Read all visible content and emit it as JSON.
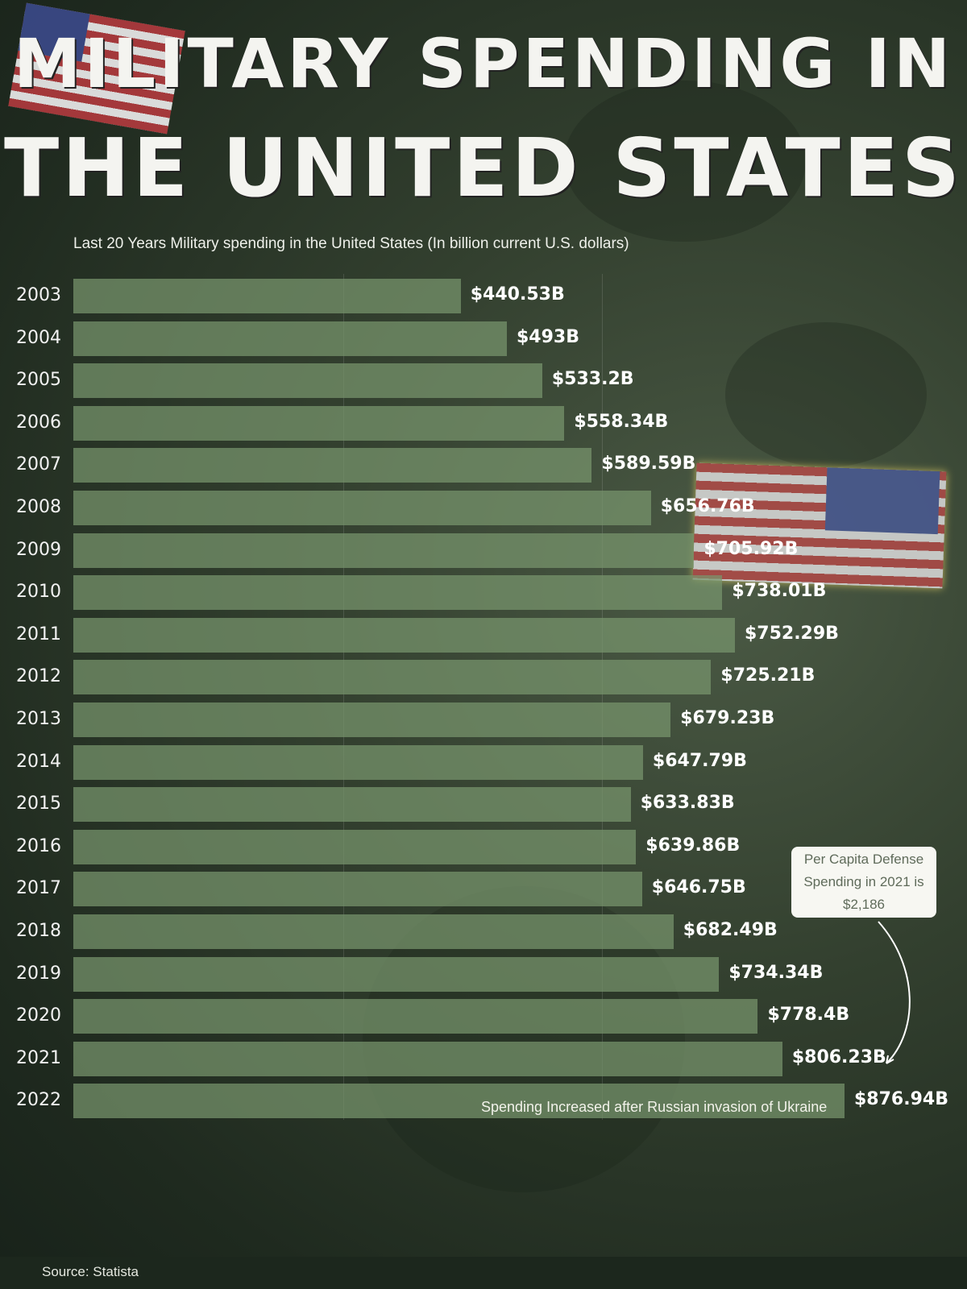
{
  "title_line1": "MILITARY SPENDING IN",
  "title_line2": "THE UNITED STATES",
  "subtitle": "Last 20 Years Military spending in the United States (In billion current U.S. dollars)",
  "callout": {
    "line1": "Per Capita Defense",
    "line2": "Spending in 2021 is",
    "line3": "$2,186"
  },
  "note": "Spending Increased after Russian invasion of Ukraine",
  "source": "Source: Statista",
  "colors": {
    "bar": "#78966e",
    "background": "#2e3a2c",
    "text": "#ffffff"
  },
  "chart_data": {
    "type": "bar",
    "orientation": "horizontal",
    "title": "MILITARY SPENDING IN THE UNITED STATES",
    "subtitle": "Last 20 Years Military spending in the United States (In billion current U.S. dollars)",
    "categories": [
      "2003",
      "2004",
      "2005",
      "2006",
      "2007",
      "2008",
      "2009",
      "2010",
      "2011",
      "2012",
      "2013",
      "2014",
      "2015",
      "2016",
      "2017",
      "2018",
      "2019",
      "2020",
      "2021",
      "2022"
    ],
    "values": [
      440.53,
      493,
      533.2,
      558.34,
      589.59,
      656.76,
      705.92,
      738.01,
      752.29,
      725.21,
      679.23,
      647.79,
      633.83,
      639.86,
      646.75,
      682.49,
      734.34,
      778.4,
      806.23,
      876.94
    ],
    "labels": [
      "$440.53B",
      "$493B",
      "$533.2B",
      "$558.34B",
      "$589.59B",
      "$656.76B",
      "$705.92B",
      "$738.01B",
      "$752.29B",
      "$725.21B",
      "$679.23B",
      "$647.79B",
      "$633.83B",
      "$639.86B",
      "$646.75B",
      "$682.49B",
      "$734.34B",
      "$778.4B",
      "$806.23B",
      "$876.94B"
    ],
    "xlim": [
      0,
      876.94
    ],
    "grid": false,
    "legend": "none"
  }
}
